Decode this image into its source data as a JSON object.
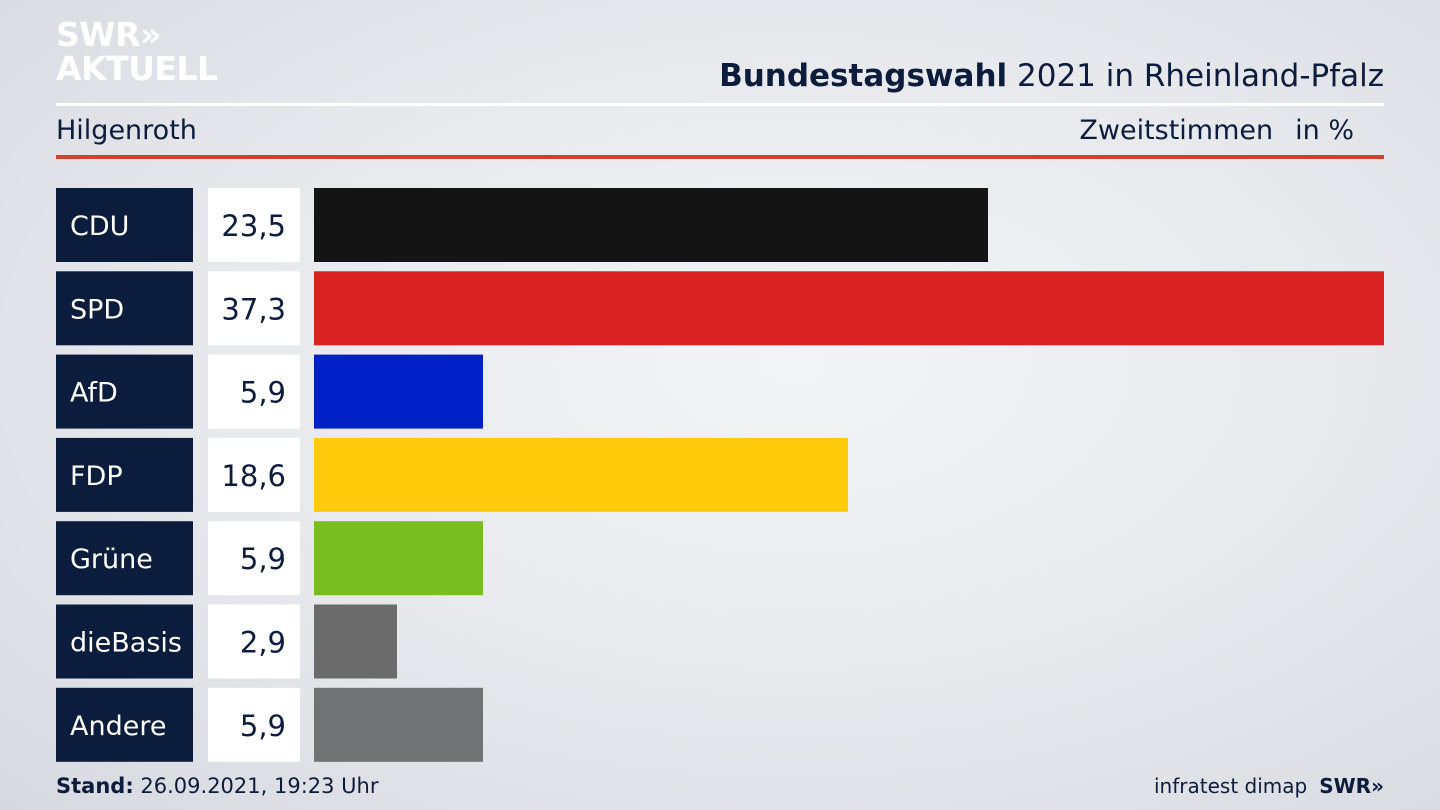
{
  "brand": {
    "line1": "SWR»",
    "line2": "AKTUELL"
  },
  "header": {
    "title_bold": "Bundestagswahl",
    "title_rest": " 2021 in Rheinland-Pfalz",
    "region": "Hilgenroth",
    "metric": "Zweitstimmen",
    "unit": "in %"
  },
  "chart_data": {
    "type": "bar",
    "orientation": "horizontal",
    "categories": [
      "CDU",
      "SPD",
      "AfD",
      "FDP",
      "Grüne",
      "dieBasis",
      "Andere"
    ],
    "values": [
      23.5,
      37.3,
      5.9,
      18.6,
      5.9,
      2.9,
      5.9
    ],
    "value_labels": [
      "23,5",
      "37,3",
      "5,9",
      "18,6",
      "5,9",
      "2,9",
      "5,9"
    ],
    "colors": [
      "#141414",
      "#d82120",
      "#0021c8",
      "#fdcb0a",
      "#78be1e",
      "#6b6b6b",
      "#717273"
    ],
    "xlim": [
      0,
      37.3
    ]
  },
  "footer": {
    "stand_label": "Stand:",
    "stand_value": " 26.09.2021, 19:23 Uhr",
    "source": "infratest dimap",
    "source_brand": "SWR»"
  }
}
